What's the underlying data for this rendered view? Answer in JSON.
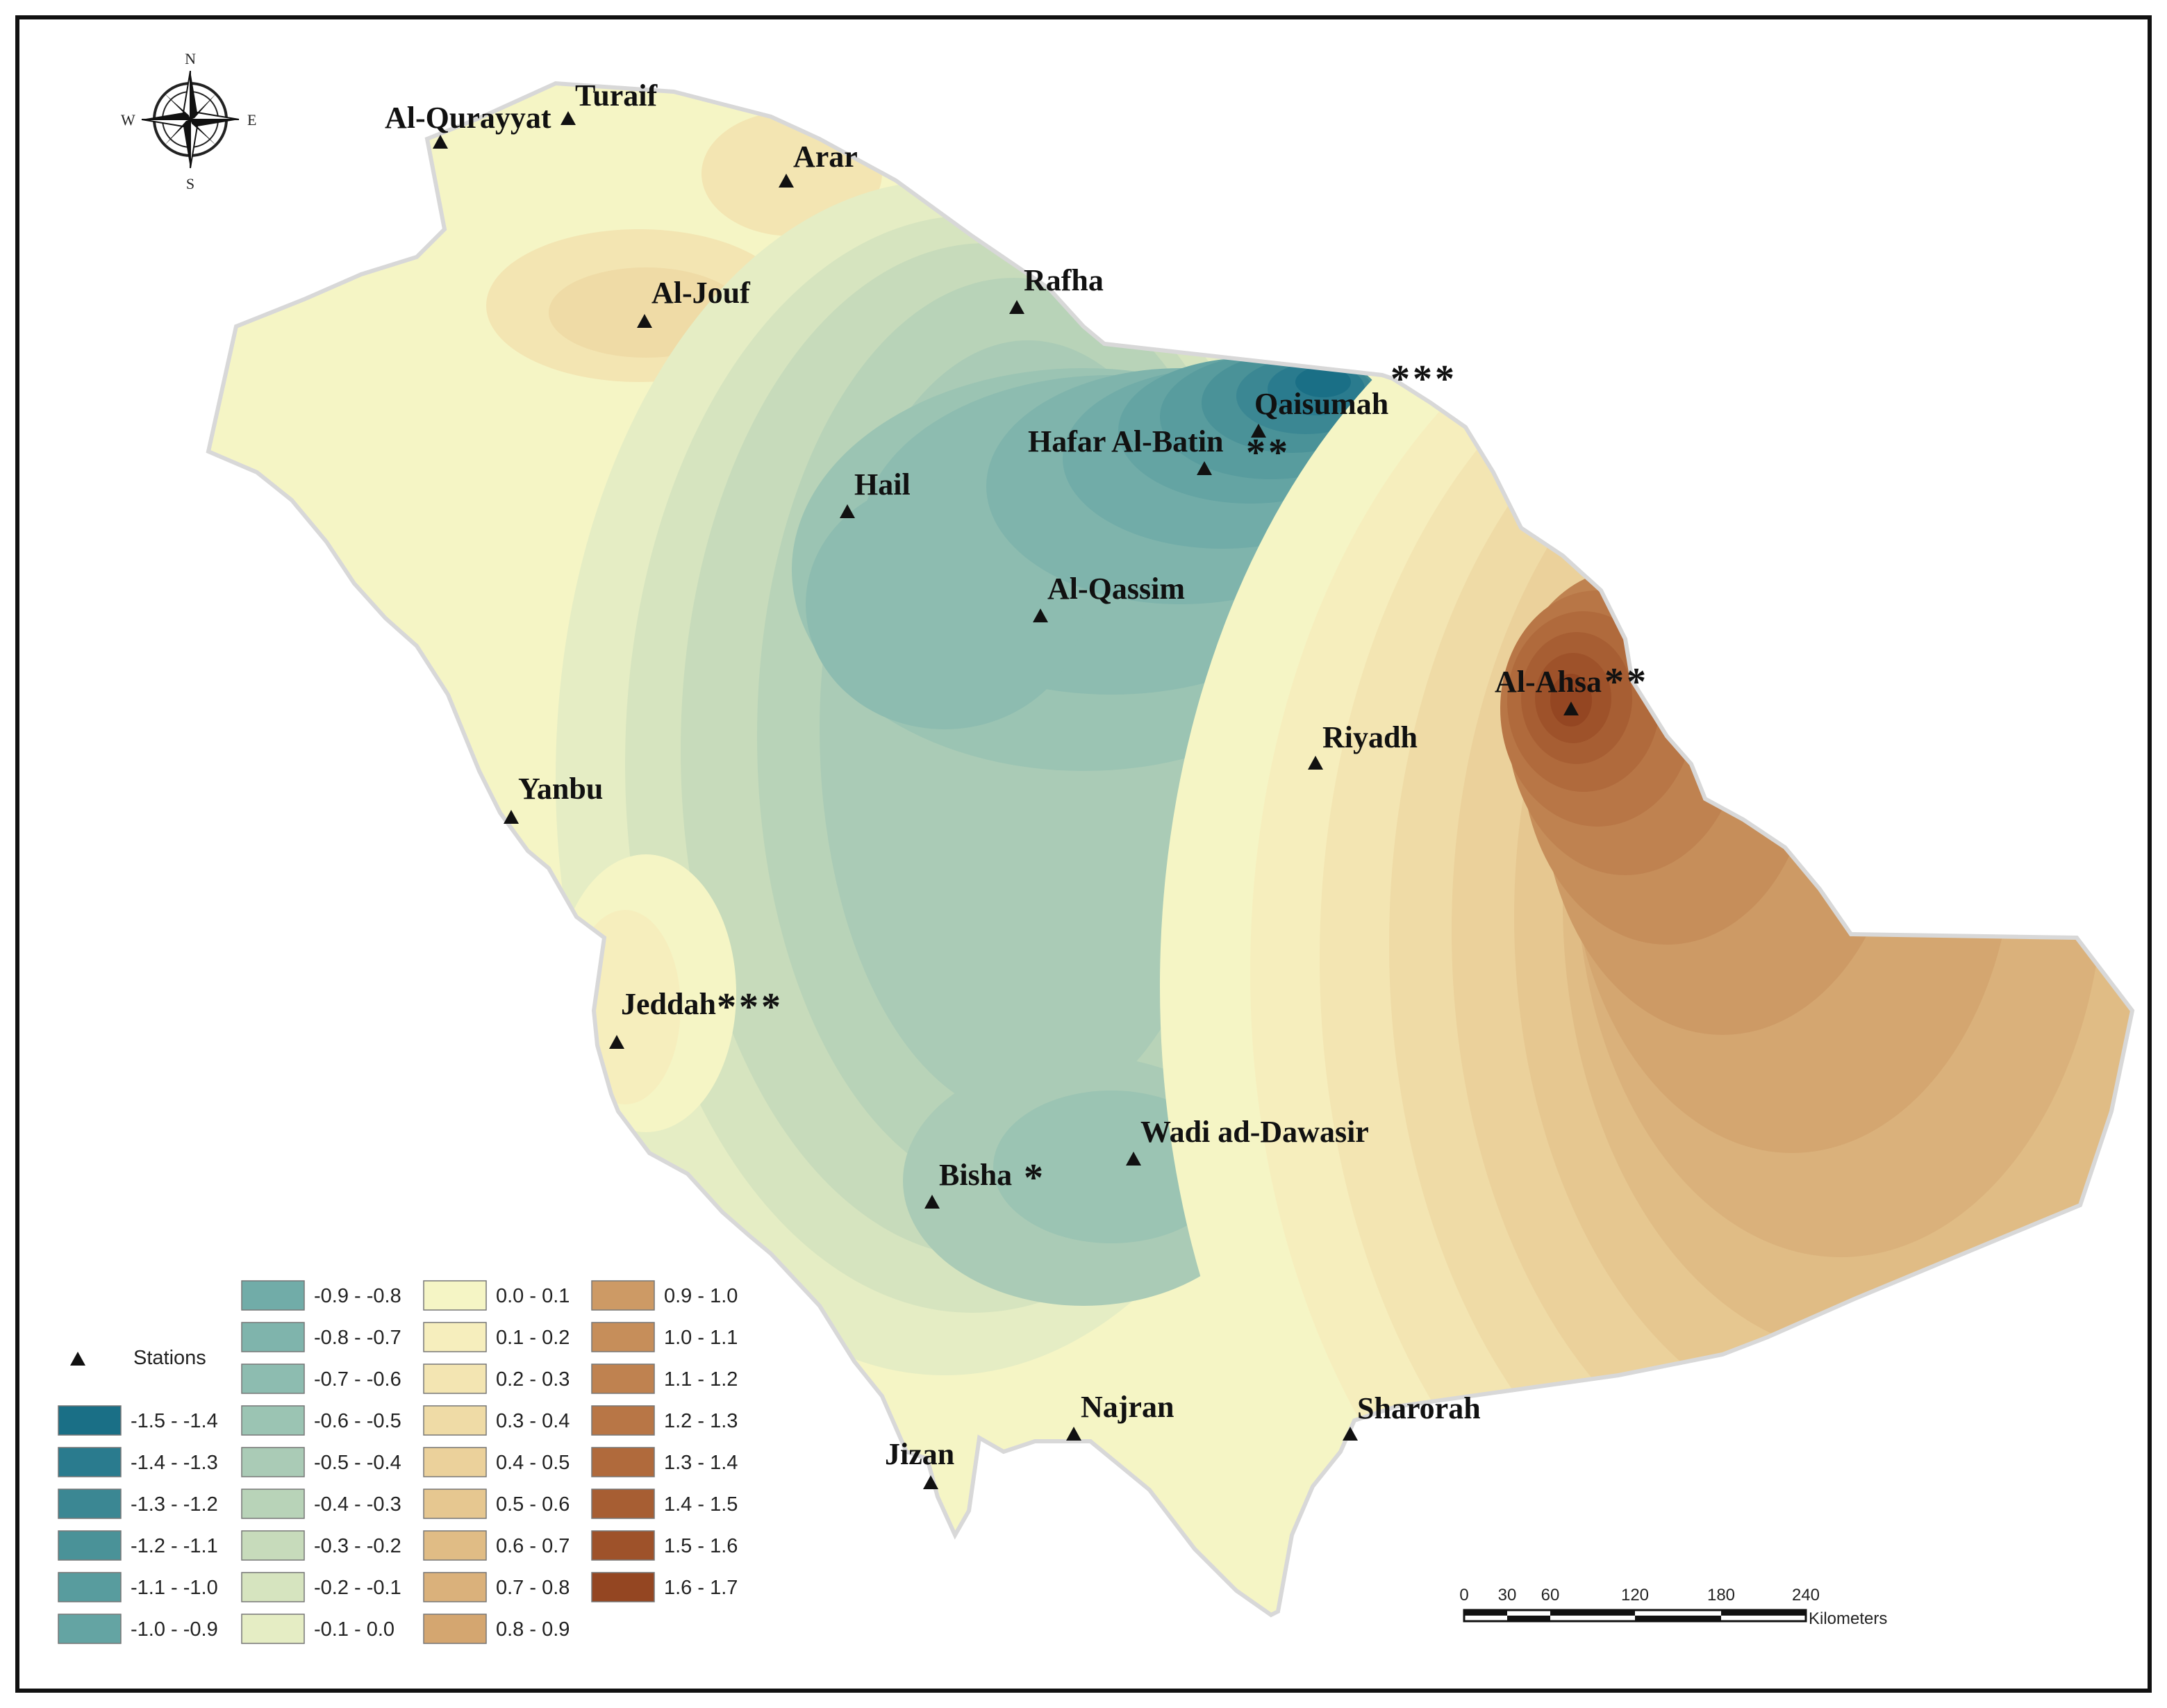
{
  "stations": [
    {
      "name": "Turaif",
      "marker": true
    },
    {
      "name": "Al-Qurayyat",
      "marker": true
    },
    {
      "name": "Arar",
      "marker": true
    },
    {
      "name": "Al-Jouf",
      "marker": true
    },
    {
      "name": "Rafha",
      "marker": true
    },
    {
      "name": "Qaisumah",
      "marker": true,
      "significance": "***"
    },
    {
      "name": "Hafar Al-Batin",
      "marker": true,
      "significance": "**"
    },
    {
      "name": "Hail",
      "marker": true
    },
    {
      "name": "Al-Qassim",
      "marker": true
    },
    {
      "name": "Al-Ahsa",
      "marker": true,
      "significance": "**"
    },
    {
      "name": "Riyadh",
      "marker": true
    },
    {
      "name": "Yanbu",
      "marker": true
    },
    {
      "name": "Jeddah",
      "marker": true,
      "significance": "***"
    },
    {
      "name": "Bisha",
      "marker": true,
      "significance": "*"
    },
    {
      "name": "Wadi ad-Dawasir",
      "marker": true
    },
    {
      "name": "Najran",
      "marker": true
    },
    {
      "name": "Sharorah",
      "marker": true
    },
    {
      "name": "Jizan",
      "marker": true
    }
  ],
  "legend": {
    "stations_label": "Stations",
    "classes": [
      {
        "label": "-1.5 - -1.4",
        "color": "#1a6f86"
      },
      {
        "label": "-1.4 - -1.3",
        "color": "#2a7b8e"
      },
      {
        "label": "-1.3 - -1.2",
        "color": "#3b8793"
      },
      {
        "label": "-1.2 - -1.1",
        "color": "#4a9298"
      },
      {
        "label": "-1.1 - -1.0",
        "color": "#589c9e"
      },
      {
        "label": "-1.0 - -0.9",
        "color": "#64a4a3"
      },
      {
        "label": "-0.9 - -0.8",
        "color": "#71aca8"
      },
      {
        "label": "-0.8 - -0.7",
        "color": "#7fb4ac"
      },
      {
        "label": "-0.7 - -0.6",
        "color": "#8dbcb0"
      },
      {
        "label": "-0.6 - -0.5",
        "color": "#9bc4b3"
      },
      {
        "label": "-0.5 - -0.4",
        "color": "#aacbb6"
      },
      {
        "label": "-0.4 - -0.3",
        "color": "#b8d3b8"
      },
      {
        "label": "-0.3 - -0.2",
        "color": "#c7dbbb"
      },
      {
        "label": "-0.2 - -0.1",
        "color": "#d6e4bf"
      },
      {
        "label": "-0.1 - 0.0",
        "color": "#e5edc4"
      },
      {
        "label": "0.0 - 0.1",
        "color": "#f5f5c5"
      },
      {
        "label": "0.1 - 0.2",
        "color": "#f6eebd"
      },
      {
        "label": "0.2 - 0.3",
        "color": "#f3e5b2"
      },
      {
        "label": "0.3 - 0.4",
        "color": "#efdba6"
      },
      {
        "label": "0.4 - 0.5",
        "color": "#ebd19b"
      },
      {
        "label": "0.5 - 0.6",
        "color": "#e6c790"
      },
      {
        "label": "0.6 - 0.7",
        "color": "#e0bc85"
      },
      {
        "label": "0.7 - 0.8",
        "color": "#dab17b"
      },
      {
        "label": "0.8 - 0.9",
        "color": "#d4a670"
      },
      {
        "label": "0.9 - 1.0",
        "color": "#cd9a65"
      },
      {
        "label": "1.0 - 1.1",
        "color": "#c68e5a"
      },
      {
        "label": "1.1 - 1.2",
        "color": "#bf8250"
      },
      {
        "label": "1.2 - 1.3",
        "color": "#b87646"
      },
      {
        "label": "1.3 - 1.4",
        "color": "#b06a3c"
      },
      {
        "label": "1.4 - 1.5",
        "color": "#a75e33"
      },
      {
        "label": "1.5 - 1.6",
        "color": "#9e522a"
      },
      {
        "label": "1.6 - 1.7",
        "color": "#944622"
      }
    ]
  },
  "scale_bar": {
    "ticks": [
      "0",
      "30",
      "60",
      "120",
      "180",
      "240"
    ],
    "unit": "Kilometers"
  },
  "compass": {
    "n": "N",
    "s": "S",
    "e": "E",
    "w": "W"
  }
}
